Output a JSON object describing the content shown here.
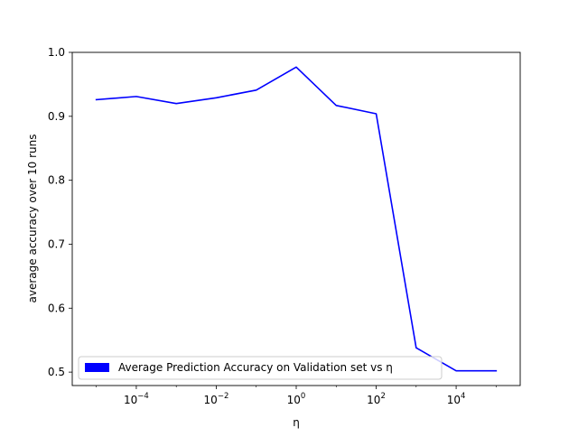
{
  "chart_data": {
    "type": "line",
    "xscale": "log",
    "x": [
      1e-05,
      0.0001,
      0.001,
      0.01,
      0.1,
      1,
      10,
      100,
      1000,
      10000,
      100000
    ],
    "series": [
      {
        "name": "Average Prediction Accuracy on Validation set vs η",
        "color": "#0000ff",
        "values": [
          0.926,
          0.931,
          0.92,
          0.929,
          0.941,
          0.977,
          0.917,
          0.904,
          0.538,
          0.502,
          0.502
        ]
      }
    ],
    "xlim": [
      2.5e-06,
      400000
    ],
    "ylim": [
      0.479,
      1.0
    ],
    "xticks": {
      "values": [
        0.0001,
        0.01,
        1,
        100,
        10000
      ],
      "bases": [
        "10",
        "10",
        "10",
        "10",
        "10"
      ],
      "exponents": [
        "−4",
        "−2",
        "0",
        "2",
        "4"
      ]
    },
    "yticks": {
      "values": [
        0.5,
        0.6,
        0.7,
        0.8,
        0.9,
        1.0
      ],
      "labels": [
        "0.5",
        "0.6",
        "0.7",
        "0.8",
        "0.9",
        "1.0"
      ]
    },
    "xlabel": "η",
    "ylabel": "average accuracy over 10 runs",
    "legend": {
      "location": "lower-left",
      "label": "Average Prediction Accuracy on Validation set vs η"
    },
    "grid": false
  }
}
